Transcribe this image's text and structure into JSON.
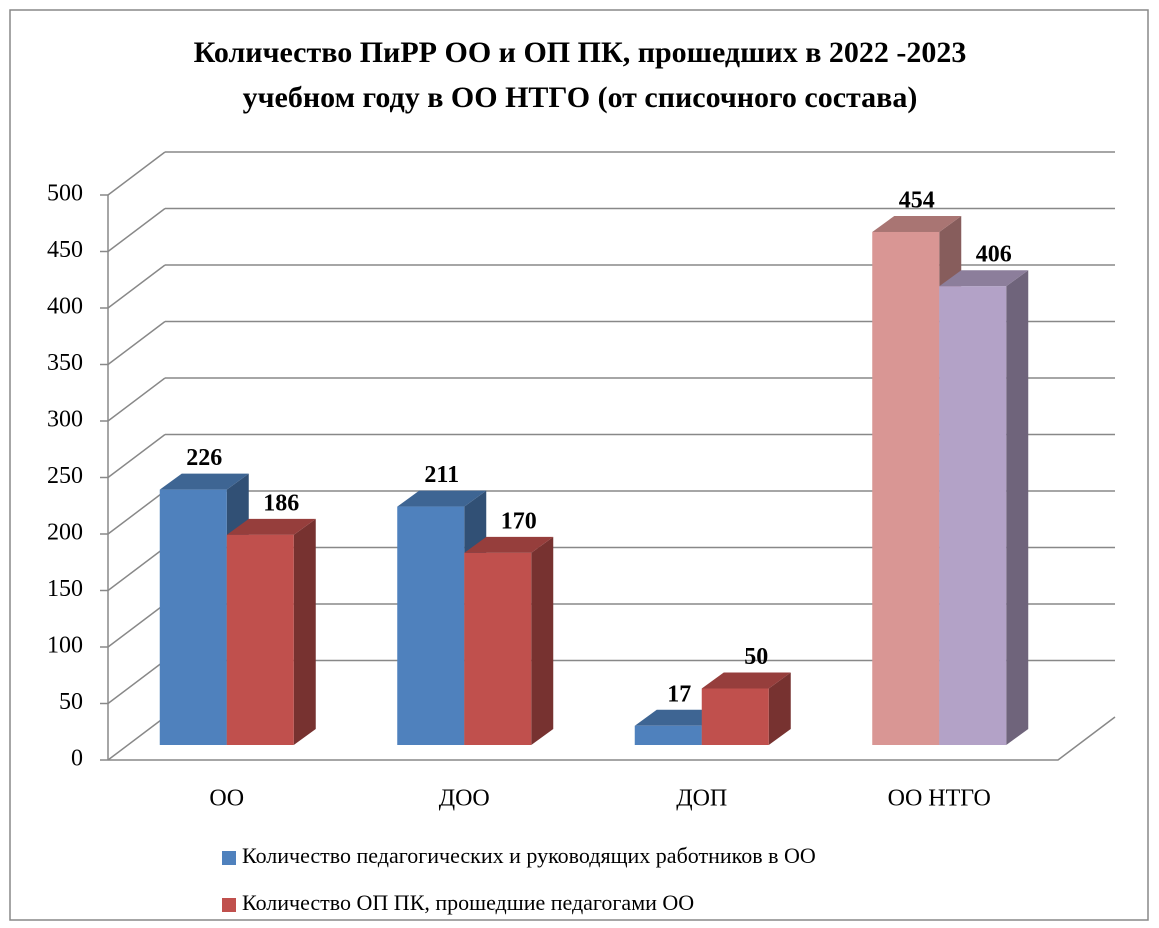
{
  "chart_data": {
    "type": "bar3d",
    "title": "Количество ПиРР ОО и ОП ПК, прошедших в 2022 -2023",
    "subtitle": "учебном году в  ОО НТГО (от списочного состава)",
    "categories": [
      "ОО",
      "ДОО",
      "ДОП",
      "ОО НТГО"
    ],
    "series": [
      {
        "name": "Количество педагогических и руководящих работников в ОО",
        "color": "#4f81bd",
        "colors": [
          "#4f81bd",
          "#4f81bd",
          "#4f81bd",
          "#d99694"
        ],
        "values": [
          226,
          211,
          17,
          454
        ]
      },
      {
        "name": "Количество ОП ПК, прошедшие педагогами ОО",
        "color": "#c0504d",
        "colors": [
          "#c0504d",
          "#c0504d",
          "#c0504d",
          "#b3a2c7"
        ],
        "values": [
          186,
          170,
          50,
          406
        ]
      }
    ],
    "ylim": [
      0,
      500
    ],
    "yticks": [
      0,
      50,
      100,
      150,
      200,
      250,
      300,
      350,
      400,
      450,
      500
    ],
    "grid": true,
    "legend": "bottom"
  }
}
